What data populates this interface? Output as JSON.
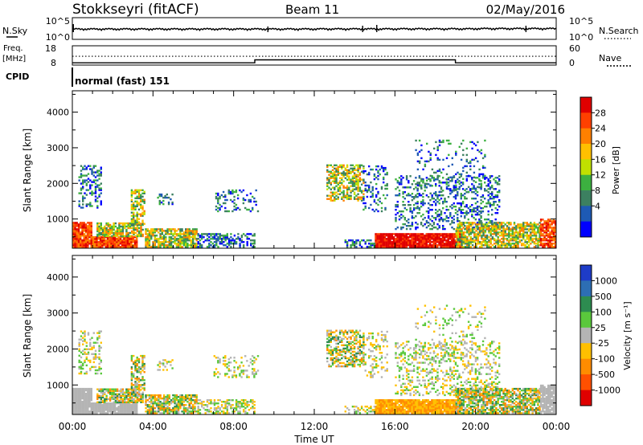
{
  "header": {
    "station": "Stokkseyri (fitACF)",
    "beam": "Beam 11",
    "date": "02/May/2016"
  },
  "top_panel": {
    "left_label": "N.Sky",
    "left_ticks": [
      "10^5",
      "10^0"
    ],
    "right_label": "N.Search",
    "right_ticks": [
      "10^5",
      "10^0"
    ]
  },
  "freq_panel": {
    "left_label_1": "Freq.",
    "left_label_2": "[MHz]",
    "left_ticks": [
      "18",
      "8"
    ],
    "right_label": "Nave",
    "right_ticks": [
      "60",
      "0"
    ],
    "cpid_label": "CPID",
    "cpid_value": "normal (fast) 151"
  },
  "chart_data": [
    {
      "type": "line",
      "panel": "N.Sky / N.Search",
      "y_scale": "log",
      "ylim": [
        1,
        100000
      ],
      "x": [
        "00:00",
        "04:00",
        "08:00",
        "12:00",
        "16:00",
        "20:00",
        "00:00"
      ],
      "description_series": [
        {
          "values": [
            300,
            300,
            300,
            320,
            340,
            400,
            320
          ]
        }
      ]
    },
    {
      "type": "line",
      "panel": "Freq / Nave",
      "x_hours": [
        0,
        9.05,
        9.05,
        19.0,
        19.0,
        24
      ],
      "nave": [
        5,
        5,
        15,
        15,
        5,
        5
      ],
      "freq": [
        12.5,
        12.5,
        12.5,
        12.5,
        12.5,
        12.5
      ],
      "ylim_freq": [
        8,
        18
      ],
      "ylim_nave": [
        0,
        60
      ]
    },
    {
      "type": "heatmap",
      "panel": "Power",
      "ylabel": "Slant Range [km]",
      "yticks": [
        1000,
        2000,
        3000,
        4000
      ],
      "ylim": [
        180,
        4600
      ],
      "xlim_hours": [
        0,
        24
      ],
      "colorbar_label": "Power [dB]",
      "colorbar_ticks": [
        "28",
        "24",
        "20",
        "16",
        "12",
        "8",
        "4"
      ],
      "colorbar_colors": [
        "#e00000",
        "#ff4000",
        "#ff8000",
        "#ffc000",
        "#c0e000",
        "#3cb040",
        "#3c8060",
        "#1e5ab4",
        "#0000ff"
      ]
    },
    {
      "type": "heatmap",
      "panel": "Velocity",
      "ylabel": "Slant Range [km]",
      "yticks": [
        1000,
        2000,
        3000,
        4000
      ],
      "ylim": [
        180,
        4600
      ],
      "xlim_hours": [
        0,
        24
      ],
      "xlabel": "Time UT",
      "xticks": [
        "00:00",
        "04:00",
        "08:00",
        "12:00",
        "16:00",
        "20:00",
        "00:00"
      ],
      "colorbar_label": "Velocity [m s⁻¹]",
      "colorbar_ticks": [
        "1000",
        "500",
        "100",
        "25",
        "-25",
        "-100",
        "-500",
        "-1000"
      ],
      "colorbar_colors": [
        "#1e3cc8",
        "#2d6eb4",
        "#2d8c50",
        "#5ac83c",
        "#b4b4b4",
        "#ffc000",
        "#ff8c00",
        "#ff5000",
        "#e00000"
      ]
    }
  ],
  "range_ticks": [
    "1000",
    "2000",
    "3000",
    "4000"
  ]
}
